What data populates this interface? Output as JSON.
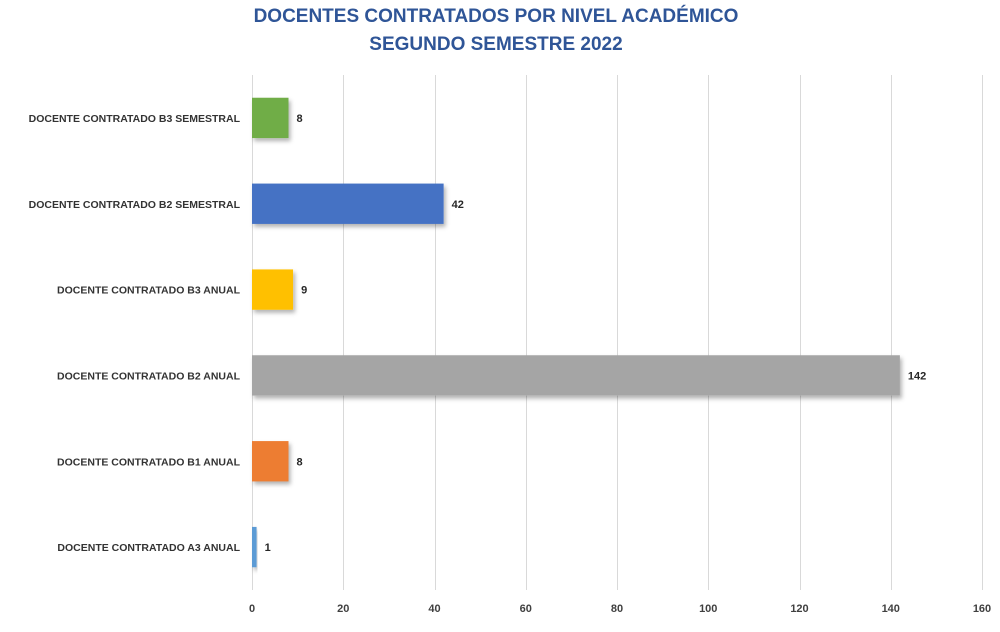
{
  "chart_data": {
    "type": "bar",
    "orientation": "horizontal",
    "title": [
      "DOCENTES CONTRATADOS POR NIVEL ACADÉMICO",
      "SEGUNDO SEMESTRE 2022"
    ],
    "categories": [
      "DOCENTE CONTRATADO B3 SEMESTRAL",
      "DOCENTE CONTRATADO B2 SEMESTRAL",
      "DOCENTE CONTRATADO B3 ANUAL",
      "DOCENTE CONTRATADO B2 ANUAL",
      "DOCENTE CONTRATADO B1 ANUAL",
      "DOCENTE CONTRATADO A3 ANUAL"
    ],
    "values": [
      8,
      42,
      9,
      142,
      8,
      1
    ],
    "data_labels": [
      "8",
      "42",
      "9",
      "142",
      "8",
      "1"
    ],
    "colors": [
      "#70ad47",
      "#4472c4",
      "#ffc000",
      "#a5a5a5",
      "#ed7d31",
      "#5b9bd5"
    ],
    "xlim": [
      0,
      160
    ],
    "x_ticks": [
      0,
      20,
      40,
      60,
      80,
      100,
      120,
      140,
      160
    ],
    "x_tick_labels": [
      "0",
      "20",
      "40",
      "60",
      "80",
      "100",
      "120",
      "140",
      "160"
    ],
    "grid": "vertical",
    "legend": "none"
  }
}
